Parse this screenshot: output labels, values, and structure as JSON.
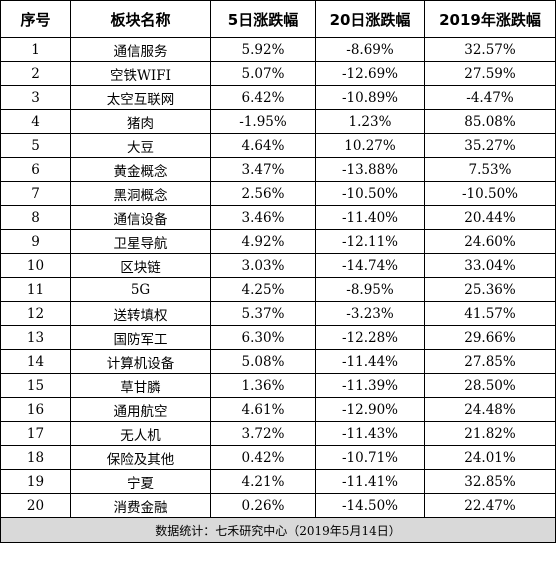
{
  "headers": [
    "序号",
    "板块名称",
    "5日涨跌幅",
    "20日涨跌幅",
    "2019年涨跌幅"
  ],
  "rows": [
    [
      "1",
      "通信服务",
      "5.92%",
      "-8.69%",
      "32.57%"
    ],
    [
      "2",
      "空铁WIFI",
      "5.07%",
      "-12.69%",
      "27.59%"
    ],
    [
      "3",
      "太空互联网",
      "6.42%",
      "-10.89%",
      "-4.47%"
    ],
    [
      "4",
      "猪肉",
      "-1.95%",
      "1.23%",
      "85.08%"
    ],
    [
      "5",
      "大豆",
      "4.64%",
      "10.27%",
      "35.27%"
    ],
    [
      "6",
      "黄金概念",
      "3.47%",
      "-13.88%",
      "7.53%"
    ],
    [
      "7",
      "黑洞概念",
      "2.56%",
      "-10.50%",
      "-10.50%"
    ],
    [
      "8",
      "通信设备",
      "3.46%",
      "-11.40%",
      "20.44%"
    ],
    [
      "9",
      "卫星导航",
      "4.92%",
      "-12.11%",
      "24.60%"
    ],
    [
      "10",
      "区块链",
      "3.03%",
      "-14.74%",
      "33.04%"
    ],
    [
      "11",
      "5G",
      "4.25%",
      "-8.95%",
      "25.36%"
    ],
    [
      "12",
      "送转填权",
      "5.37%",
      "-3.23%",
      "41.57%"
    ],
    [
      "13",
      "国防军工",
      "6.30%",
      "-12.28%",
      "29.66%"
    ],
    [
      "14",
      "计算机设备",
      "5.08%",
      "-11.44%",
      "27.85%"
    ],
    [
      "15",
      "草甘膦",
      "1.36%",
      "-11.39%",
      "28.50%"
    ],
    [
      "16",
      "通用航空",
      "4.61%",
      "-12.90%",
      "24.48%"
    ],
    [
      "17",
      "无人机",
      "3.72%",
      "-11.43%",
      "21.82%"
    ],
    [
      "18",
      "保险及其他",
      "0.42%",
      "-10.71%",
      "24.01%"
    ],
    [
      "19",
      "宁夏",
      "4.21%",
      "-11.41%",
      "32.85%"
    ],
    [
      "20",
      "消费金融",
      "0.26%",
      "-14.50%",
      "22.47%"
    ]
  ],
  "footer": "数据统计：七禾研究中心（2019年5月14日）",
  "colors": {
    "border": "#000000",
    "footer_bg": "#d9d9d9"
  }
}
